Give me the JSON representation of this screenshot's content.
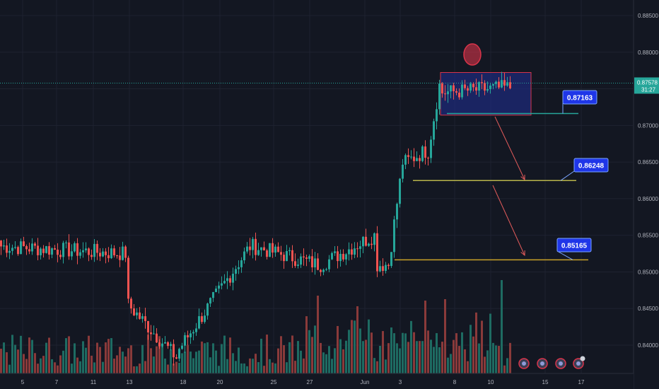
{
  "chart_data": {
    "type": "candlestick",
    "symbol_hint": "",
    "y_axis_ticks": [
      "0.88500",
      "0.88000",
      "0.87500",
      "0.87000",
      "0.86500",
      "0.86000",
      "0.85500",
      "0.85000",
      "0.84500",
      "0.84000"
    ],
    "y_axis_values": [
      0.885,
      0.88,
      0.875,
      0.87,
      0.865,
      0.86,
      0.855,
      0.85,
      0.845,
      0.84
    ],
    "x_axis_ticks": [
      "5",
      "7",
      "11",
      "13",
      "18",
      "20",
      "25",
      "27",
      "Jun",
      "3",
      "8",
      "10",
      "15",
      "17"
    ],
    "ylim": [
      0.8372,
      0.8892
    ],
    "grid": true,
    "current_price_label": "0.87578",
    "current_price": 0.87578,
    "countdown_label": "31:27",
    "series_segments": [
      {
        "from_index": 0,
        "to_index": 44,
        "start": 0.8535,
        "end": 0.8525
      },
      {
        "from_index": 45,
        "to_index": 62,
        "start": 0.8455,
        "end": 0.8383
      },
      {
        "from_index": 63,
        "to_index": 88,
        "start": 0.8395,
        "end": 0.8535
      },
      {
        "from_index": 89,
        "to_index": 112,
        "start": 0.8535,
        "end": 0.851
      },
      {
        "from_index": 113,
        "to_index": 132,
        "start": 0.851,
        "end": 0.855
      },
      {
        "from_index": 133,
        "to_index": 136,
        "start": 0.851,
        "end": 0.851
      },
      {
        "from_index": 137,
        "to_index": 142,
        "start": 0.851,
        "end": 0.865
      },
      {
        "from_index": 143,
        "to_index": 150,
        "start": 0.865,
        "end": 0.8665
      },
      {
        "from_index": 151,
        "to_index": 155,
        "start": 0.8665,
        "end": 0.8755
      },
      {
        "from_index": 156,
        "to_index": 180,
        "start": 0.8745,
        "end": 0.8752
      }
    ],
    "candle_count": 181,
    "annotations": {
      "levels": [
        {
          "label": "0.87163",
          "price": 0.87163,
          "color": "#26a69a"
        },
        {
          "label": "0.86248",
          "price": 0.86248,
          "color": "#b8b44a"
        },
        {
          "label": "0.85165",
          "price": 0.85165,
          "color": "#c9a227"
        }
      ],
      "range_box": {
        "price_top": 0.878,
        "price_bottom": 0.8716,
        "fill": "#1e2a78",
        "stroke": "#d9344a"
      },
      "circle_marker": {
        "price": 0.8793,
        "color": "#d9344a"
      },
      "arrows_color": "#e05a5a",
      "event_icons": 4
    }
  },
  "colors": {
    "background": "#131722",
    "grid": "#1e2230",
    "up": "#26a69a",
    "down": "#ef5350",
    "up_volume": "#1e6b62",
    "down_volume": "#8a3a3a",
    "price_line": "#26a69a",
    "callout_bg": "#1f36e8",
    "callout_border": "#7aa5ff"
  }
}
